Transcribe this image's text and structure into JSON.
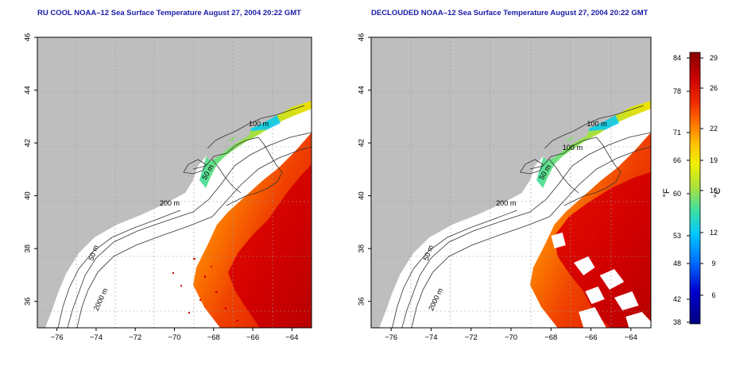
{
  "panels": [
    {
      "title": "RU COOL NOAA–12 Sea Surface Temperature August 27, 2004 20:22 GMT",
      "contour_labels": [
        "100 m",
        "50 m",
        "200 m",
        "50 m",
        "2000 m"
      ]
    },
    {
      "title": "DECLOUDED NOAA–12 Sea Surface Temperature August 27, 2004 20:22 GMT",
      "contour_labels": [
        "100 m",
        "100 m",
        "50 m",
        "200 m",
        "50 m",
        "2000 m"
      ]
    }
  ],
  "axes": {
    "x_ticks": [
      "−76",
      "−74",
      "−72",
      "−70",
      "−68",
      "−66",
      "−64"
    ],
    "y_ticks": [
      "46",
      "44",
      "42",
      "40",
      "38",
      "36"
    ],
    "x_range": [
      -77,
      -63
    ],
    "y_range": [
      35,
      46
    ]
  },
  "colorbar": {
    "fahrenheit_label": "°F",
    "celsius_label": "°C",
    "fahrenheit_ticks": [
      "84",
      "78",
      "71",
      "66",
      "60",
      "53",
      "48",
      "42",
      "38"
    ],
    "celsius_ticks": [
      "29",
      "26",
      "22",
      "19",
      "16",
      "12",
      "9",
      "6"
    ],
    "colors": [
      "#8a0000",
      "#c80000",
      "#ee2800",
      "#ff7a00",
      "#ffc400",
      "#f0f000",
      "#a8e040",
      "#40e0a0",
      "#00c8ff",
      "#0070ff",
      "#0000d0",
      "#000080"
    ]
  },
  "colors": {
    "land": "#bebebe",
    "ocean": "#ffffff",
    "title": "#1a1aa8"
  }
}
